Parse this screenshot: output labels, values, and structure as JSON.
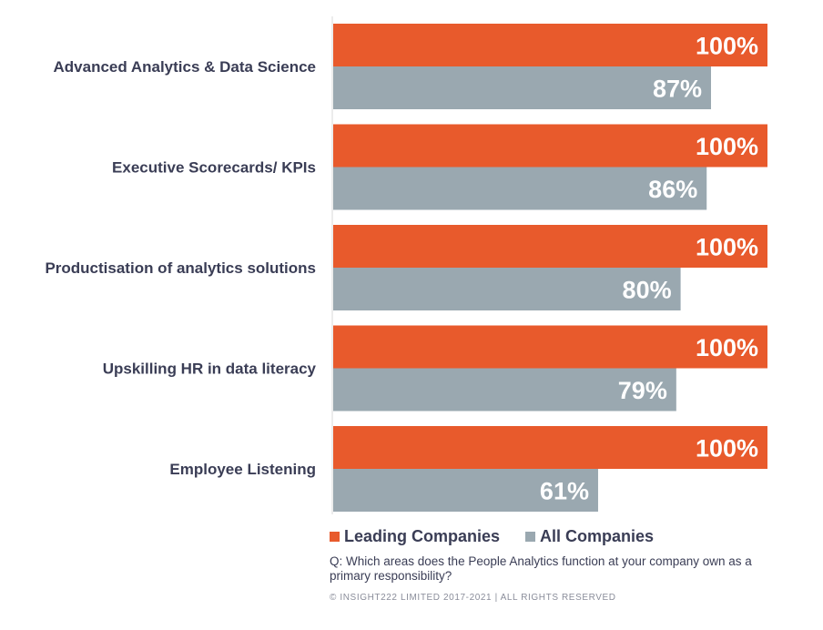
{
  "chart_data": {
    "type": "bar",
    "orientation": "horizontal",
    "categories": [
      "Advanced Analytics & Data Science",
      "Executive Scorecards/ KPIs",
      "Productisation of analytics solutions",
      "Upskilling HR in data literacy",
      "Employee Listening"
    ],
    "series": [
      {
        "name": "Leading Companies",
        "color": "#e85a2c",
        "values": [
          100,
          100,
          100,
          100,
          100
        ]
      },
      {
        "name": "All Companies",
        "color": "#9aa8b0",
        "values": [
          87,
          86,
          80,
          79,
          61
        ]
      }
    ],
    "value_suffix": "%",
    "xlim": [
      0,
      100
    ],
    "grid": false,
    "legend_position": "bottom"
  },
  "legend": {
    "leading_label": "Leading Companies",
    "all_label": "All Companies",
    "leading_color": "#e85a2c",
    "all_color": "#9aa8b0"
  },
  "footer": {
    "question": "Q: Which areas does the People Analytics function at your company own as a primary responsibility?",
    "copyright": "© INSIGHT222 LIMITED 2017-2021 | ALL RIGHTS RESERVED"
  }
}
